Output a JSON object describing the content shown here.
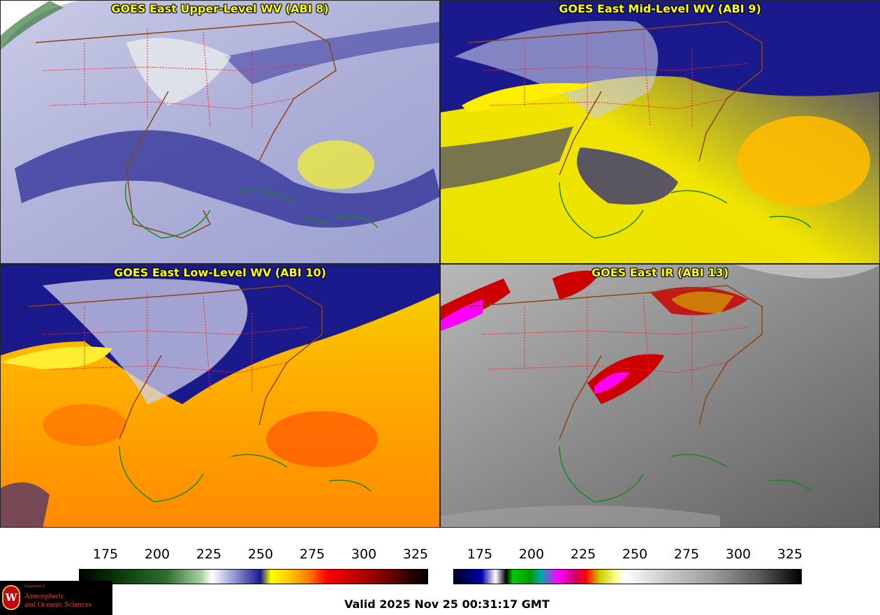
{
  "panels": {
    "upper": {
      "title": "GOES East Upper-Level WV (ABI 8)"
    },
    "mid": {
      "title": "GOES East Mid-Level WV (ABI 9)"
    },
    "low": {
      "title": "GOES East Low-Level WV (ABI 10)"
    },
    "ir": {
      "title": "GOES East IR (ABI 13)"
    }
  },
  "colorbar_left": {
    "ticks": [
      "175",
      "200",
      "225",
      "250",
      "275",
      "300",
      "325"
    ]
  },
  "colorbar_right": {
    "ticks": [
      "175",
      "200",
      "225",
      "250",
      "275",
      "300",
      "325"
    ]
  },
  "footer": {
    "valid_time": "Valid 2025 Nov 25 00:31:17 GMT"
  },
  "logo": {
    "dept_line": "Department of",
    "line1": "Atmospheric",
    "line2": "and Oceanic Sciences",
    "crest_letter": "W"
  },
  "colors": {
    "title_yellow": "#ffff00",
    "state_borders": "#ff2020",
    "coast_land": "#1a8a1a",
    "coast_us": "#8b4513"
  }
}
